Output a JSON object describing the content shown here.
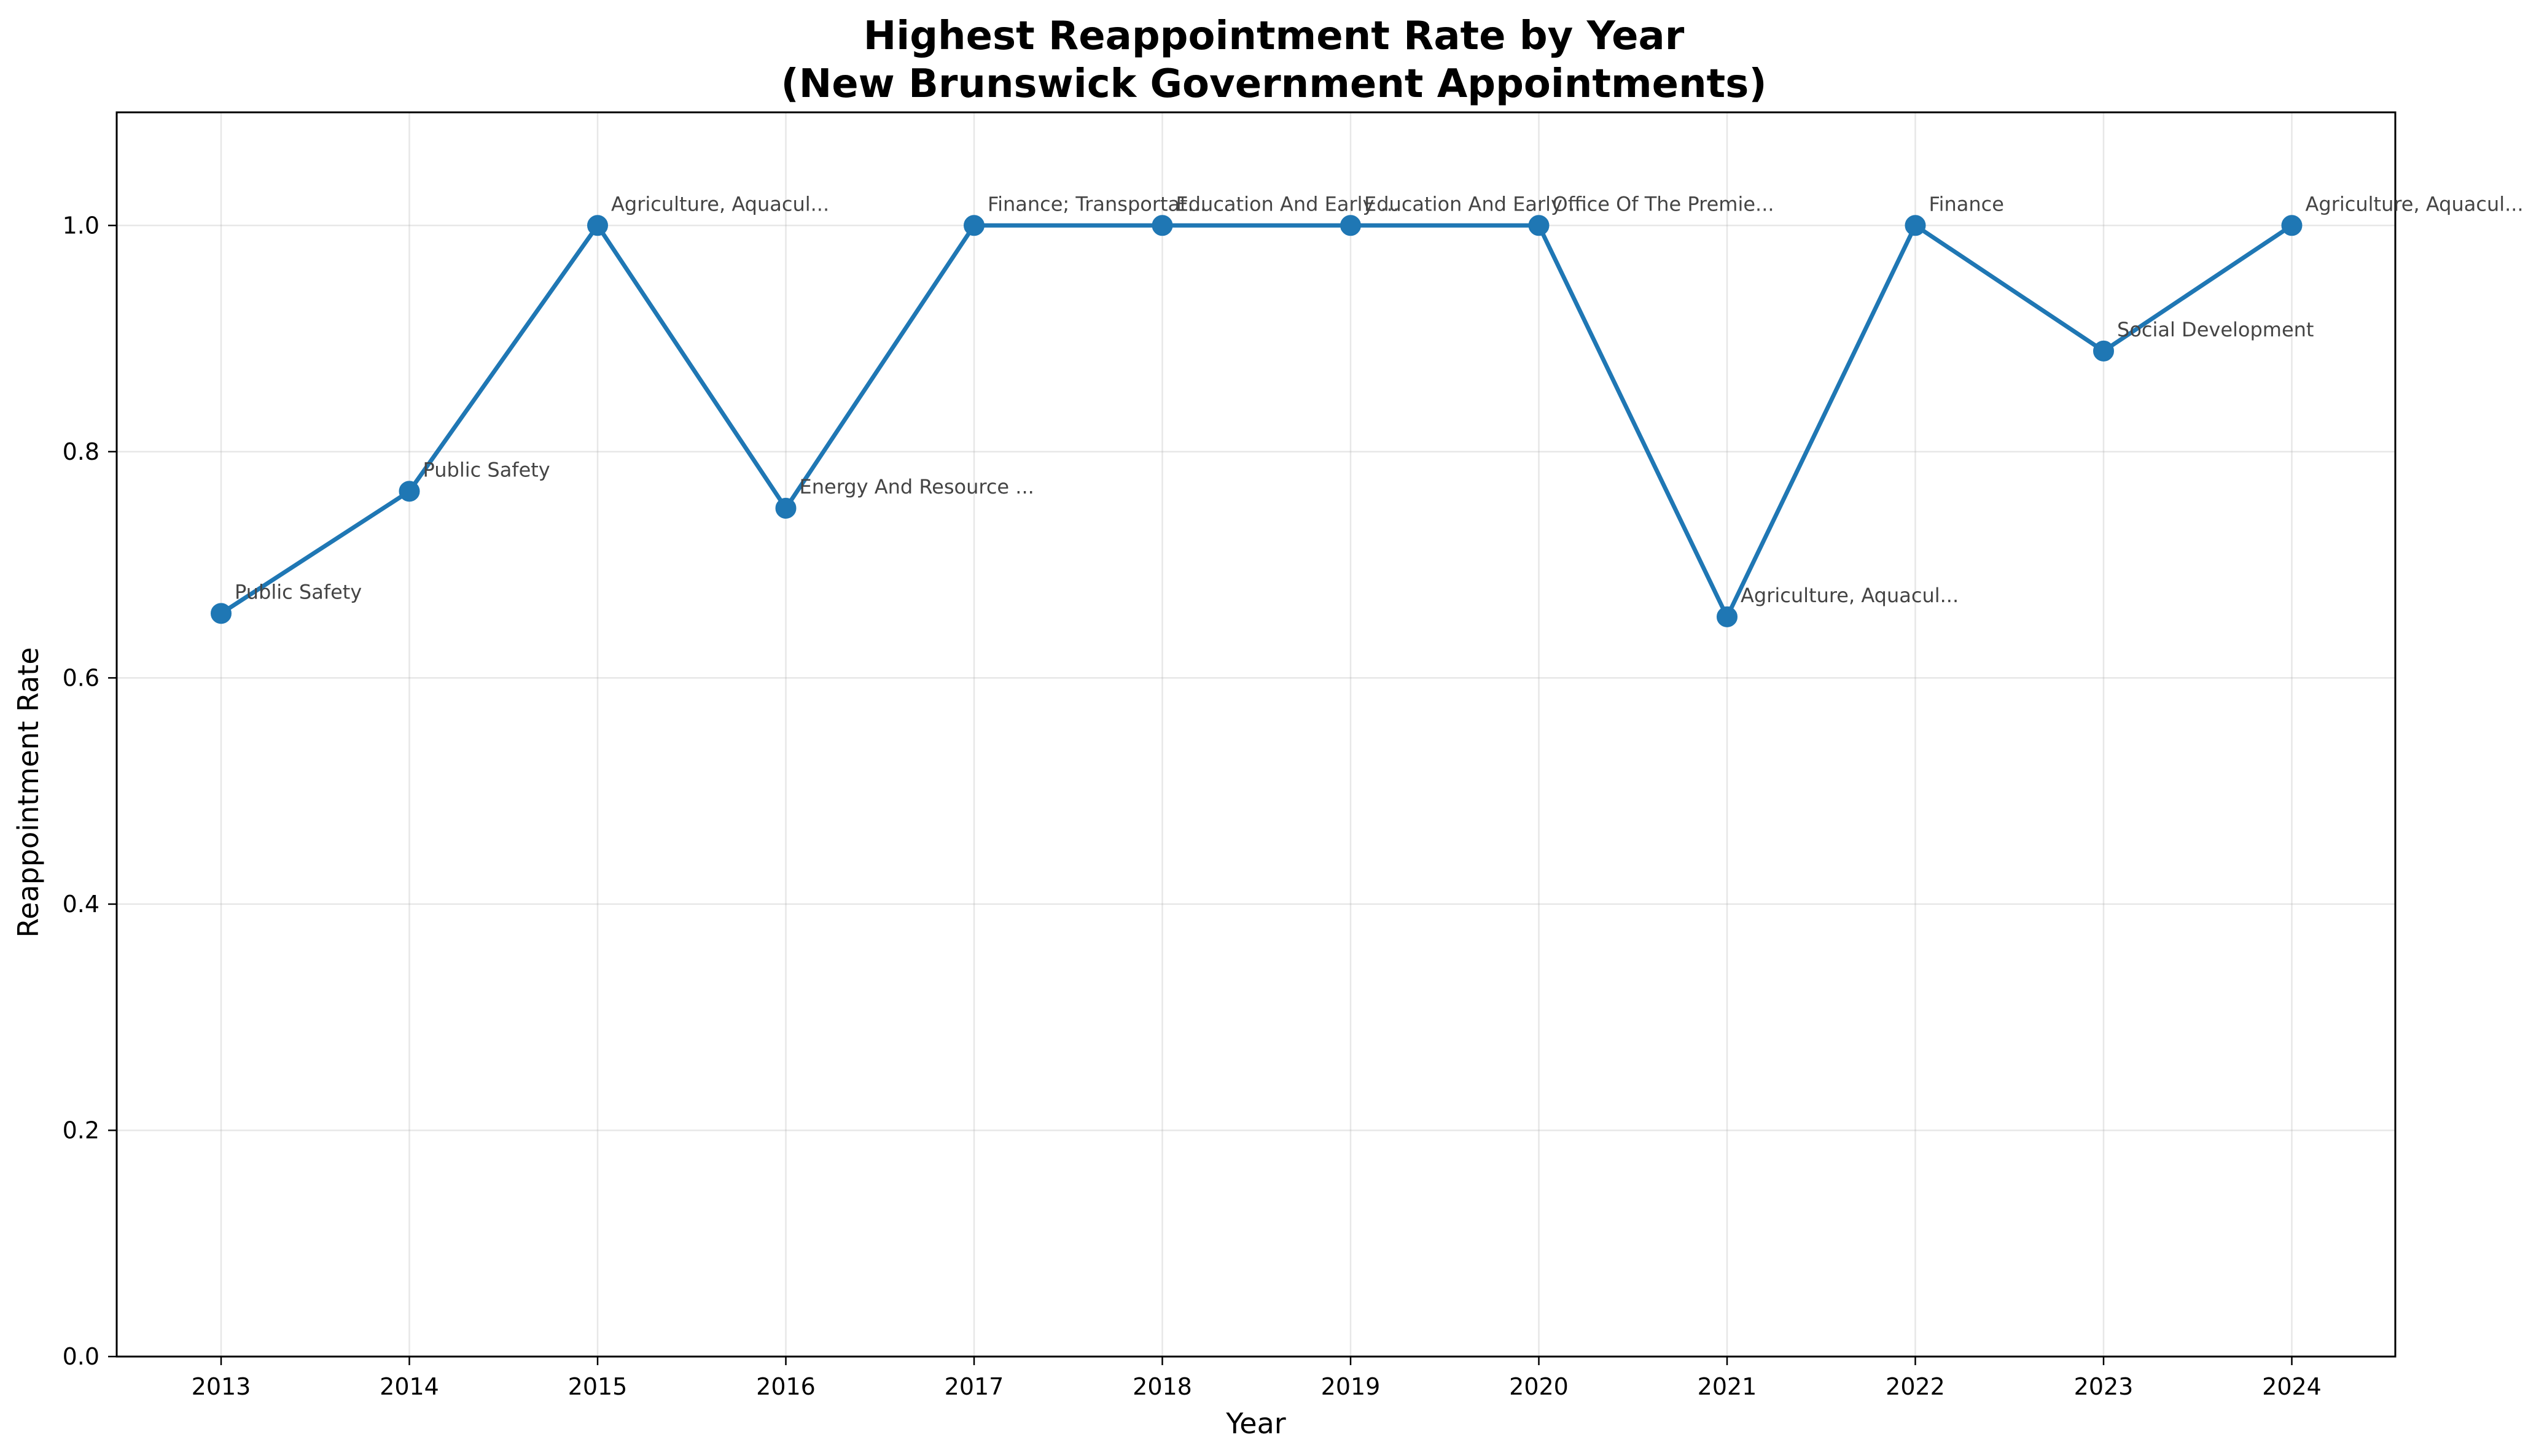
{
  "chart_data": {
    "type": "line",
    "title": "Highest Reappointment Rate by Year",
    "subtitle": "(New Brunswick Government Appointments)",
    "xlabel": "Year",
    "ylabel": "Reappointment Rate",
    "ylim": [
      0,
      1.1
    ],
    "yticks": [
      "0.0",
      "0.2",
      "0.4",
      "0.6",
      "0.8",
      "1.0"
    ],
    "grid": true,
    "x": [
      "2013",
      "2014",
      "2015",
      "2016",
      "2017",
      "2018",
      "2019",
      "2020",
      "2021",
      "2022",
      "2023",
      "2024"
    ],
    "series": [
      {
        "values": [
          0.657,
          0.765,
          1.0,
          0.75,
          1.0,
          1.0,
          1.0,
          1.0,
          0.654,
          1.0,
          0.889,
          1.0
        ],
        "color": "#1f77b4"
      }
    ],
    "annotations": [
      "Public Safety",
      "Public Safety",
      "Agriculture, Aquacul...",
      "Energy And Resource ...",
      "Finance; Transportat...",
      "Education And Early ...",
      "Education And Early ...",
      "Office Of The Premie...",
      "Agriculture, Aquacul...",
      "Finance",
      "Social Development",
      "Agriculture, Aquacul..."
    ]
  }
}
